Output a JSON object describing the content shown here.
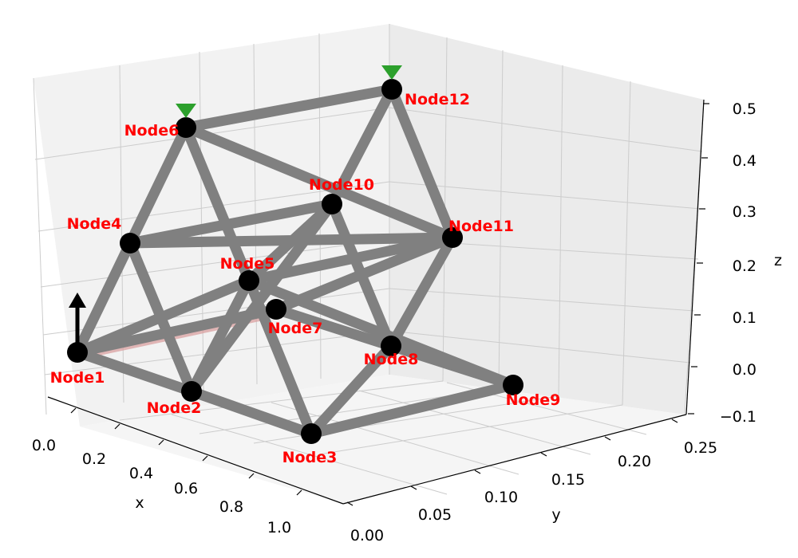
{
  "chart_data": {
    "type": "3d-truss-diagram",
    "axes": {
      "x": {
        "label": "x",
        "ticks": [
          "0.0",
          "0.2",
          "0.4",
          "0.6",
          "0.8",
          "1.0"
        ]
      },
      "y": {
        "label": "y",
        "ticks": [
          "0.00",
          "0.05",
          "0.10",
          "0.15",
          "0.20",
          "0.25"
        ]
      },
      "z": {
        "label": "z",
        "ticks": [
          "−0.1",
          "0.0",
          "0.1",
          "0.2",
          "0.3",
          "0.4",
          "0.5"
        ]
      }
    },
    "nodes": [
      {
        "id": "Node1",
        "label": "Node1"
      },
      {
        "id": "Node2",
        "label": "Node2"
      },
      {
        "id": "Node3",
        "label": "Node3"
      },
      {
        "id": "Node4",
        "label": "Node4"
      },
      {
        "id": "Node5",
        "label": "Node5"
      },
      {
        "id": "Node6",
        "label": "Node6"
      },
      {
        "id": "Node7",
        "label": "Node7"
      },
      {
        "id": "Node8",
        "label": "Node8"
      },
      {
        "id": "Node9",
        "label": "Node9"
      },
      {
        "id": "Node10",
        "label": "Node10"
      },
      {
        "id": "Node11",
        "label": "Node11"
      },
      {
        "id": "Node12",
        "label": "Node12"
      }
    ],
    "members": [
      [
        "Node1",
        "Node2"
      ],
      [
        "Node2",
        "Node3"
      ],
      [
        "Node3",
        "Node9"
      ],
      [
        "Node1",
        "Node7"
      ],
      [
        "Node7",
        "Node8"
      ],
      [
        "Node8",
        "Node9"
      ],
      [
        "Node5",
        "Node9"
      ],
      [
        "Node1",
        "Node4"
      ],
      [
        "Node4",
        "Node6"
      ],
      [
        "Node4",
        "Node2"
      ],
      [
        "Node4",
        "Node10"
      ],
      [
        "Node4",
        "Node11"
      ],
      [
        "Node6",
        "Node5"
      ],
      [
        "Node6",
        "Node11"
      ],
      [
        "Node6",
        "Node12"
      ],
      [
        "Node12",
        "Node10"
      ],
      [
        "Node12",
        "Node11"
      ],
      [
        "Node10",
        "Node5"
      ],
      [
        "Node10",
        "Node2"
      ],
      [
        "Node10",
        "Node8"
      ],
      [
        "Node11",
        "Node8"
      ],
      [
        "Node11",
        "Node5"
      ],
      [
        "Node11",
        "Node7"
      ],
      [
        "Node5",
        "Node2"
      ],
      [
        "Node5",
        "Node3"
      ],
      [
        "Node5",
        "Node1"
      ],
      [
        "Node8",
        "Node3"
      ]
    ],
    "supports": [
      "Node6",
      "Node12"
    ],
    "loads": [
      "Node1"
    ],
    "colors": {
      "member": "#808080",
      "node": "#000000",
      "label": "#ff0000",
      "support": "#2ca02c",
      "load": "#000000",
      "highlight": "#d9a0a0",
      "pane": "#f2f2f2",
      "grid": "#cccccc"
    }
  }
}
